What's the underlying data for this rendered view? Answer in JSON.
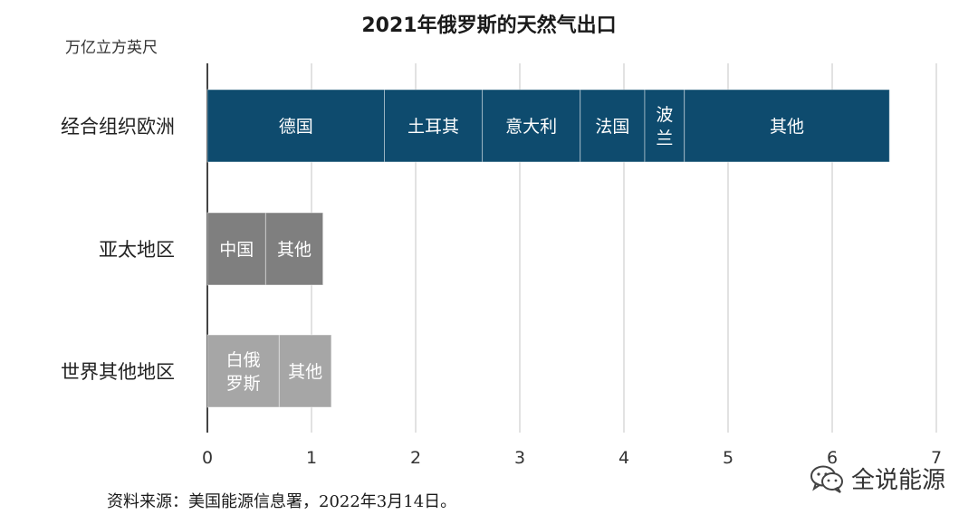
{
  "chart_data": {
    "type": "bar",
    "orientation": "horizontal",
    "stacked": true,
    "title": "2021年俄罗斯的天然气出口",
    "unit_label": "万亿立方英尺",
    "xlim": [
      0,
      7
    ],
    "xticks": [
      "0",
      "1",
      "2",
      "3",
      "4",
      "5",
      "6",
      "7"
    ],
    "grid": true,
    "categories": [
      "经合组织欧洲",
      "亚太地区",
      "世界其他地区"
    ],
    "stacks": [
      {
        "category": "经合组织欧洲",
        "color": "#0e4b6e",
        "segments": [
          {
            "label": "德国",
            "value": 1.7
          },
          {
            "label": "土耳其",
            "value": 0.94
          },
          {
            "label": "意大利",
            "value": 0.94
          },
          {
            "label": "法国",
            "value": 0.62
          },
          {
            "label": "波兰",
            "value": 0.38
          },
          {
            "label": "其他",
            "value": 1.97
          }
        ]
      },
      {
        "category": "亚太地区",
        "color": "#7f7f7f",
        "segments": [
          {
            "label": "中国",
            "value": 0.56
          },
          {
            "label": "其他",
            "value": 0.55
          }
        ]
      },
      {
        "category": "世界其他地区",
        "color": "#a6a6a6",
        "segments": [
          {
            "label": "白俄罗斯",
            "value": 0.69
          },
          {
            "label": "其他",
            "value": 0.5
          }
        ]
      }
    ]
  },
  "source": "资料来源：美国能源信息署，2022年3月14日。",
  "watermark": {
    "icon": "wechat-icon",
    "text": "全说能源"
  }
}
